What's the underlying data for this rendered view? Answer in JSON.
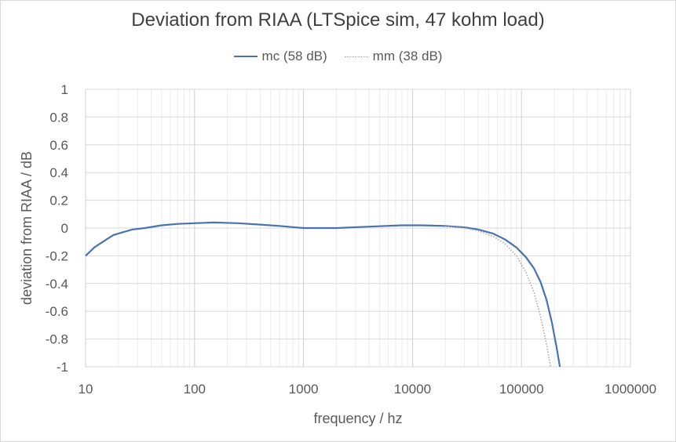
{
  "chart_data": {
    "type": "line",
    "title": "Deviation from RIAA (LTSpice  sim, 47 kohm load)",
    "xlabel": "frequency / hz",
    "ylabel": "deviation from RIAA / dB",
    "x_scale": "log",
    "xlim": [
      10,
      1000000
    ],
    "ylim": [
      -1,
      1
    ],
    "x_ticks": [
      "10",
      "100",
      "1000",
      "10000",
      "100000",
      "1000000"
    ],
    "y_ticks": [
      "1",
      "0.8",
      "0.6",
      "0.4",
      "0.2",
      "0",
      "-0.2",
      "-0.4",
      "-0.6",
      "-0.8",
      "-1"
    ],
    "grid": true,
    "legend_position": "top",
    "series": [
      {
        "name": "mc (58 dB)",
        "color": "#4a72b0",
        "style": "solid",
        "points": [
          [
            10,
            -0.2
          ],
          [
            12,
            -0.14
          ],
          [
            15,
            -0.09
          ],
          [
            18,
            -0.05
          ],
          [
            22,
            -0.03
          ],
          [
            27,
            -0.01
          ],
          [
            35,
            0.0
          ],
          [
            50,
            0.02
          ],
          [
            70,
            0.03
          ],
          [
            100,
            0.035
          ],
          [
            150,
            0.04
          ],
          [
            250,
            0.035
          ],
          [
            400,
            0.025
          ],
          [
            600,
            0.015
          ],
          [
            1000,
            0.0
          ],
          [
            2000,
            0.0
          ],
          [
            4000,
            0.01
          ],
          [
            8000,
            0.02
          ],
          [
            12000,
            0.02
          ],
          [
            20000,
            0.015
          ],
          [
            30000,
            0.005
          ],
          [
            40000,
            -0.01
          ],
          [
            55000,
            -0.04
          ],
          [
            70000,
            -0.08
          ],
          [
            90000,
            -0.14
          ],
          [
            110000,
            -0.21
          ],
          [
            130000,
            -0.29
          ],
          [
            150000,
            -0.39
          ],
          [
            170000,
            -0.52
          ],
          [
            190000,
            -0.68
          ],
          [
            210000,
            -0.86
          ],
          [
            225000,
            -1.0
          ]
        ]
      },
      {
        "name": "mm (38 dB)",
        "color": "#a6a6a6",
        "style": "dotted",
        "points": [
          [
            20000,
            0.015
          ],
          [
            30000,
            0.0
          ],
          [
            40000,
            -0.02
          ],
          [
            55000,
            -0.06
          ],
          [
            70000,
            -0.11
          ],
          [
            90000,
            -0.2
          ],
          [
            110000,
            -0.32
          ],
          [
            130000,
            -0.46
          ],
          [
            150000,
            -0.64
          ],
          [
            170000,
            -0.84
          ],
          [
            185000,
            -1.0
          ]
        ]
      }
    ]
  }
}
